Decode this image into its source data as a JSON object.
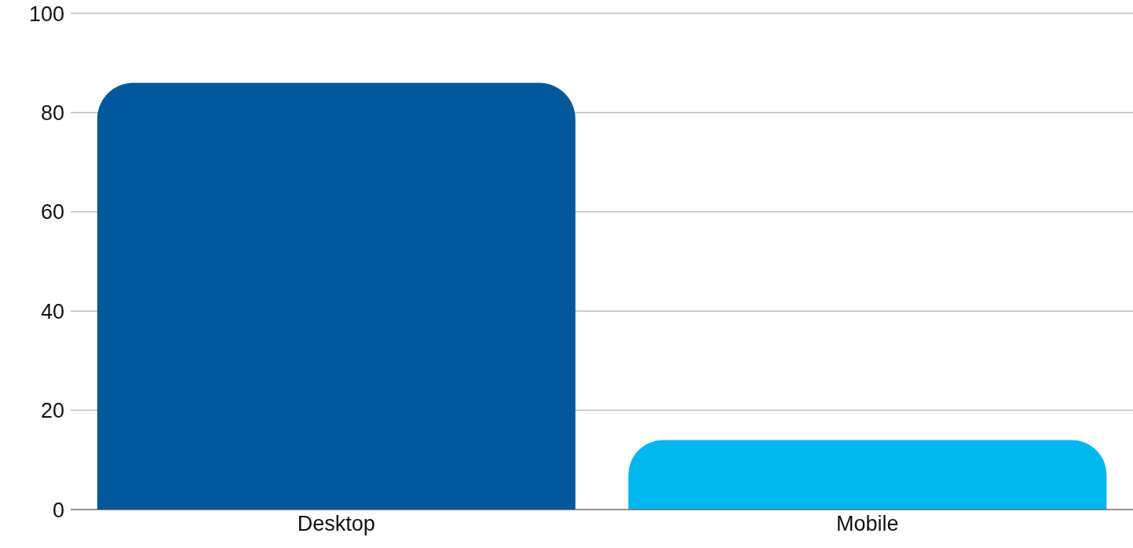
{
  "chart_data": {
    "type": "bar",
    "categories": [
      "Desktop",
      "Mobile"
    ],
    "values": [
      86,
      14
    ],
    "colors": [
      "#02589b",
      "#02b6ef"
    ],
    "ylim": [
      0,
      100
    ],
    "yticks": [
      0,
      20,
      40,
      60,
      80,
      100
    ],
    "grid": "y"
  }
}
